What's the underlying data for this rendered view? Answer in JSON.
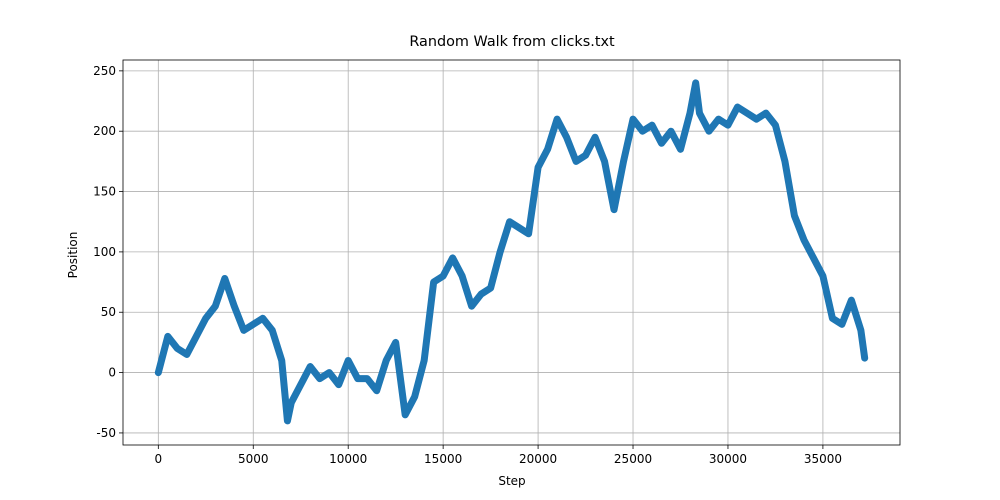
{
  "chart_data": {
    "type": "line",
    "title": "Random Walk from clicks.txt",
    "x_label": "Step",
    "y_label": "Position",
    "x": [
      0,
      500,
      1000,
      1500,
      2000,
      2500,
      3000,
      3500,
      4000,
      4500,
      5000,
      5500,
      6000,
      6500,
      6800,
      7000,
      7500,
      8000,
      8500,
      9000,
      9500,
      10000,
      10500,
      11000,
      11500,
      12000,
      12500,
      13000,
      13500,
      14000,
      14500,
      15000,
      15500,
      16000,
      16500,
      17000,
      17500,
      18000,
      18500,
      19000,
      19500,
      20000,
      20500,
      21000,
      21500,
      22000,
      22500,
      23000,
      23500,
      24000,
      24500,
      25000,
      25500,
      26000,
      26500,
      27000,
      27500,
      28000,
      28300,
      28500,
      29000,
      29500,
      30000,
      30500,
      31000,
      31500,
      32000,
      32500,
      33000,
      33500,
      34000,
      34500,
      35000,
      35500,
      36000,
      36500,
      37000,
      37200
    ],
    "series": [
      {
        "name": "Position",
        "color": "#1f77b4",
        "values": [
          0,
          30,
          20,
          15,
          30,
          45,
          55,
          78,
          55,
          35,
          40,
          45,
          35,
          10,
          -40,
          -25,
          -10,
          5,
          -5,
          0,
          -10,
          10,
          -5,
          -5,
          -15,
          10,
          25,
          -35,
          -20,
          10,
          75,
          80,
          95,
          80,
          55,
          65,
          70,
          100,
          125,
          120,
          115,
          170,
          185,
          210,
          195,
          175,
          180,
          195,
          175,
          135,
          175,
          210,
          200,
          205,
          190,
          200,
          185,
          215,
          240,
          215,
          200,
          210,
          205,
          220,
          215,
          210,
          215,
          205,
          175,
          130,
          110,
          95,
          80,
          45,
          40,
          60,
          35,
          12
        ]
      }
    ],
    "xlim": [
      -1860,
      39060
    ],
    "ylim": [
      -60,
      259
    ],
    "xticks": [
      0,
      5000,
      10000,
      15000,
      20000,
      25000,
      30000,
      35000
    ],
    "yticks": [
      -50,
      0,
      50,
      100,
      150,
      200,
      250
    ],
    "grid": true
  }
}
